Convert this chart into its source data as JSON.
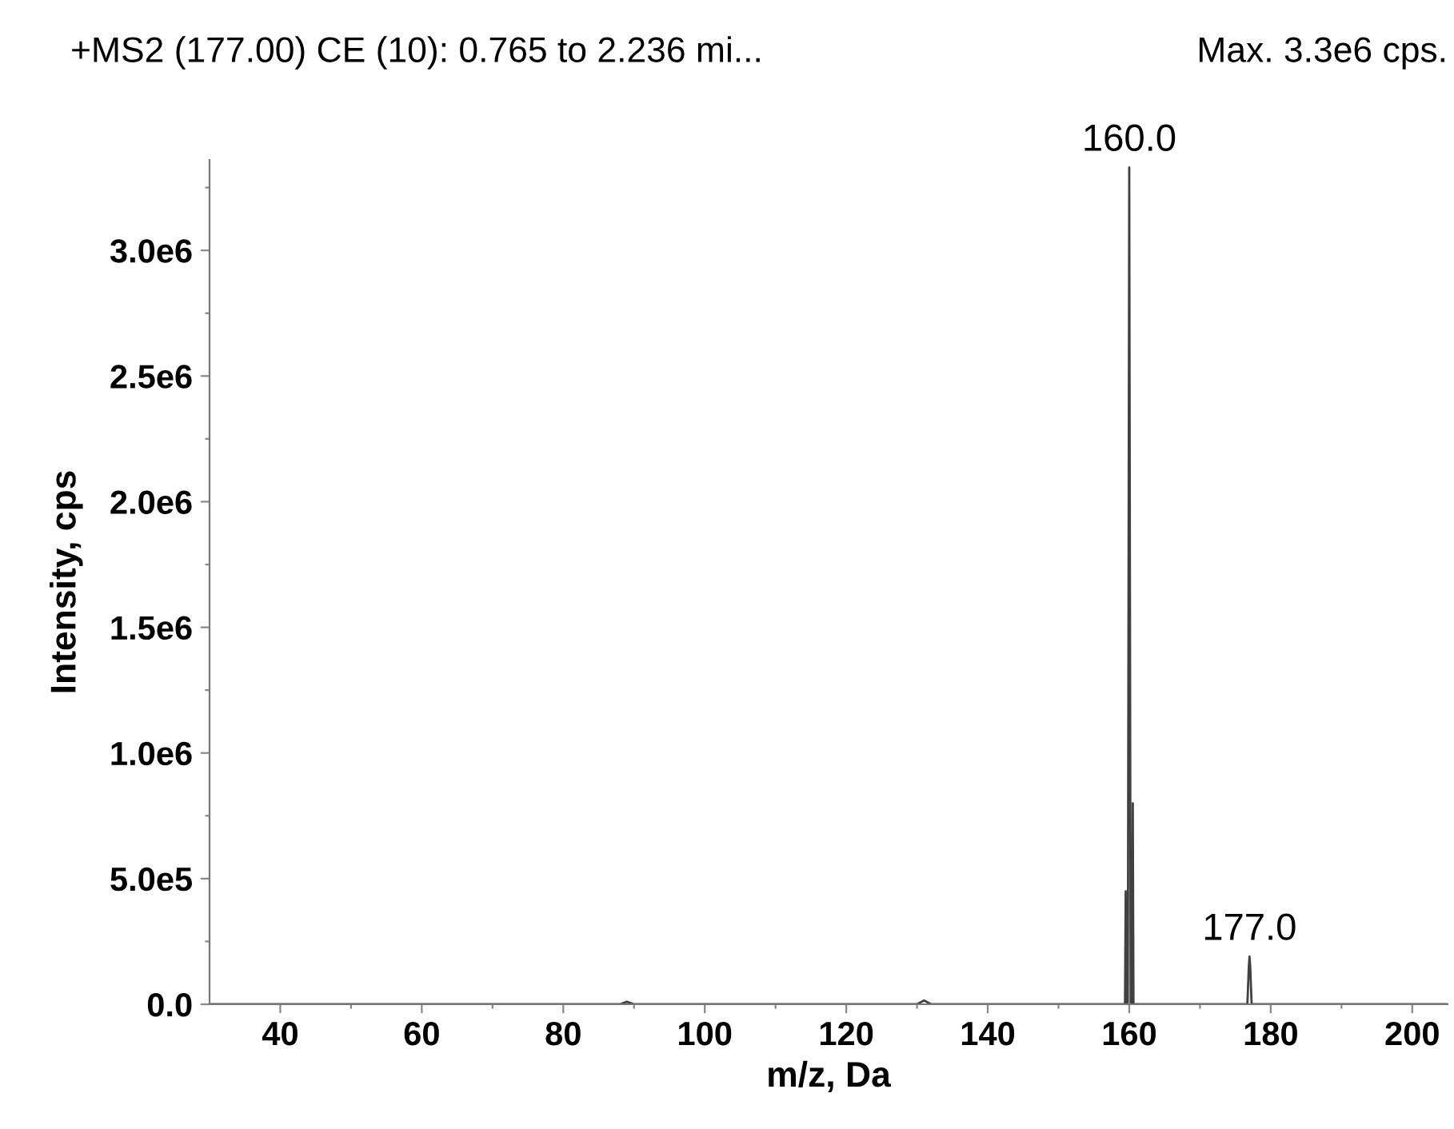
{
  "chart_data": {
    "type": "line",
    "title": "+MS2 (177.00) CE (10): 0.765 to 2.236 mi...",
    "subtitle": "Max. 3.3e6 cps.",
    "xlabel": "m/z, Da",
    "ylabel": "Intensity, cps",
    "series": [
      {
        "color": "#404040",
        "x": [
          30,
          88,
          89,
          90,
          130,
          131,
          132,
          159.4,
          159.5,
          159.6,
          159.8,
          160.0,
          160.2,
          160.4,
          160.5,
          160.6,
          176.7,
          176.9,
          177.0,
          177.1,
          177.3,
          205
        ],
        "values": [
          0,
          0,
          10000,
          0,
          0,
          15000,
          0,
          0,
          450000,
          0,
          0,
          3330000,
          0,
          0,
          800000,
          0,
          0,
          150000,
          190000,
          150000,
          0,
          0
        ]
      }
    ],
    "annotations": [
      {
        "text": "160.0",
        "x": 160.0,
        "y": 3330000
      },
      {
        "text": "177.0",
        "x": 177.0,
        "y": 190000
      }
    ],
    "xlim": [
      30,
      205
    ],
    "xticks": [
      40,
      {
        "value": 50,
        "label": null
      },
      60,
      {
        "value": 70,
        "label": null
      },
      80,
      {
        "value": 90,
        "label": null
      },
      100,
      {
        "value": 110,
        "label": null
      },
      120,
      {
        "value": 130,
        "label": null
      },
      140,
      {
        "value": 150,
        "label": null
      },
      160,
      {
        "value": 170,
        "label": null
      },
      180,
      {
        "value": 190,
        "label": null
      },
      200
    ],
    "ylim": [
      0,
      3360000
    ],
    "yticks": [
      {
        "value": 0,
        "label": "0.0"
      },
      {
        "value": 250000,
        "label": null
      },
      {
        "value": 500000,
        "label": "5.0e5"
      },
      {
        "value": 750000,
        "label": null
      },
      {
        "value": 1000000,
        "label": "1.0e6"
      },
      {
        "value": 1250000,
        "label": null
      },
      {
        "value": 1500000,
        "label": "1.5e6"
      },
      {
        "value": 1750000,
        "label": null
      },
      {
        "value": 2000000,
        "label": "2.0e6"
      },
      {
        "value": 2250000,
        "label": null
      },
      {
        "value": 2500000,
        "label": "2.5e6"
      },
      {
        "value": 2750000,
        "label": null
      },
      {
        "value": 3000000,
        "label": "3.0e6"
      },
      {
        "value": 3250000,
        "label": null
      }
    ],
    "grid": false,
    "legend": false,
    "marker": "none",
    "line_style": "solid"
  }
}
